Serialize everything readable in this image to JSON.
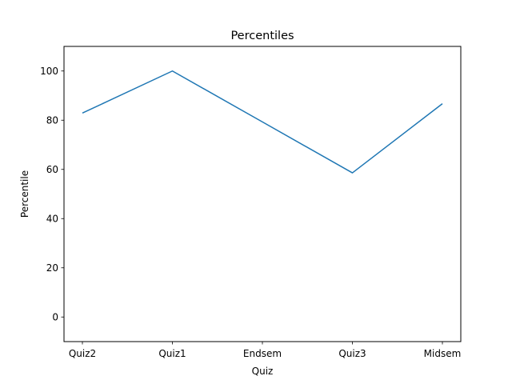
{
  "chart_data": {
    "type": "line",
    "title": "Percentiles",
    "xlabel": "Quiz",
    "ylabel": "Percentile",
    "categories": [
      "Quiz2",
      "Quiz1",
      "Endsem",
      "Quiz3",
      "Midsem"
    ],
    "series": [
      {
        "values": [
          82.9,
          100.0,
          79.3,
          58.6,
          86.7
        ],
        "color": "#1f77b4"
      }
    ],
    "ylim": [
      -10,
      110
    ],
    "yticks": [
      0,
      20,
      40,
      60,
      80,
      100
    ],
    "grid": false,
    "legend": "none"
  }
}
